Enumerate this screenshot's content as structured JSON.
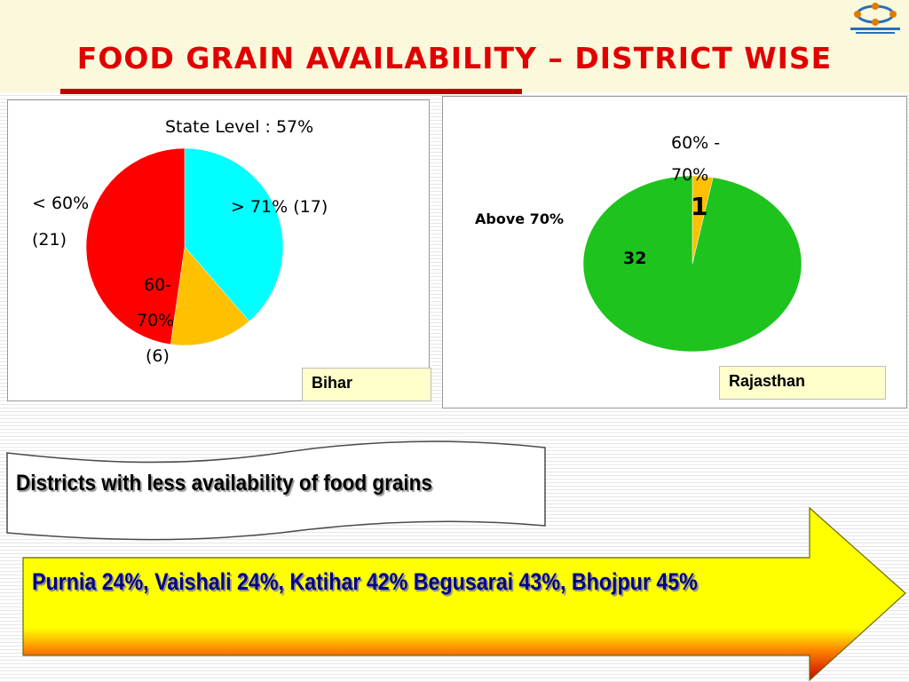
{
  "title": "FOOD GRAIN AVAILABILITY – DISTRICT WISE",
  "bihar": {
    "state_level": "State Level : 57%",
    "tag": "Bihar",
    "labels": {
      "above71": "> 71% (17)",
      "below60_line1": "< 60%",
      "below60_line2": "(21)",
      "mid_line1": "60-",
      "mid_line2": "70%",
      "mid_line3": "(6)"
    }
  },
  "rajasthan": {
    "tag": "Rajasthan",
    "labels": {
      "above70": "Above  70%",
      "above70_value": "32",
      "mid_line1": "60% -",
      "mid_line2": "70%",
      "mid_value": "1"
    }
  },
  "chart_data": [
    {
      "type": "pie",
      "slices": [
        {
          "name": "> 71%",
          "value": 17,
          "color": "#00ffff"
        },
        {
          "name": "60-70%",
          "value": 6,
          "color": "#ffc000"
        },
        {
          "name": "< 60%",
          "value": 21,
          "color": "#ff0000"
        }
      ]
    },
    {
      "type": "pie",
      "slices": [
        {
          "name": "60% - 70%",
          "value": 1,
          "color": "#ffc000"
        },
        {
          "name": "Above 70%",
          "value": 32,
          "color": "#1ec31e"
        }
      ]
    }
  ],
  "banner": {
    "text": "Districts with less availability of food grains"
  },
  "arrow": {
    "text": "Purnia 24%, Vaishali 24%, Katihar 42% Begusarai 43%, Bhojpur 45%"
  },
  "colors": {
    "title": "#e00000",
    "arrow_fill": "#ffff00",
    "arrow_bottom": "#cc0000",
    "arrow_text": "#00008b"
  }
}
